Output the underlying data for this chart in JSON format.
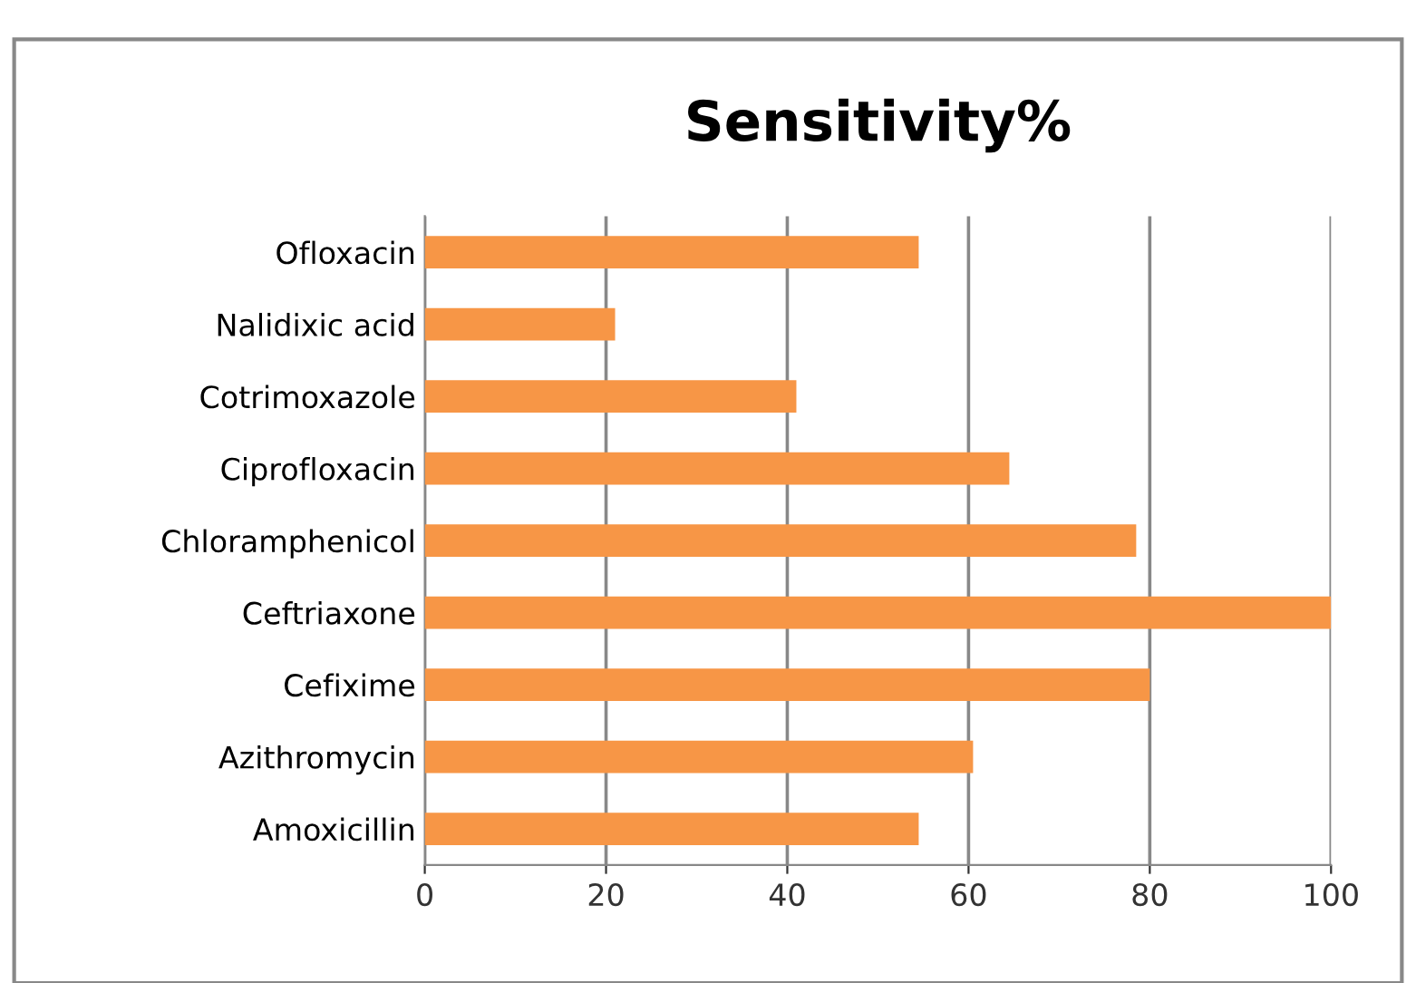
{
  "chart_data": {
    "type": "bar",
    "orientation": "horizontal",
    "title": "Sensitivity%",
    "categories": [
      "Ofloxacin",
      "Nalidixic acid",
      "Cotrimoxazole",
      "Ciprofloxacin",
      "Chloramphenicol",
      "Ceftriaxone",
      "Cefixime",
      "Azithromycin",
      "Amoxicillin"
    ],
    "values": [
      54.5,
      21,
      41,
      64.5,
      78.5,
      100,
      80,
      60.5,
      54.5
    ],
    "color": "#f79646",
    "xlim": [
      0,
      100
    ],
    "xticks": [
      0,
      20,
      40,
      60,
      80,
      100
    ],
    "grid": "x"
  }
}
